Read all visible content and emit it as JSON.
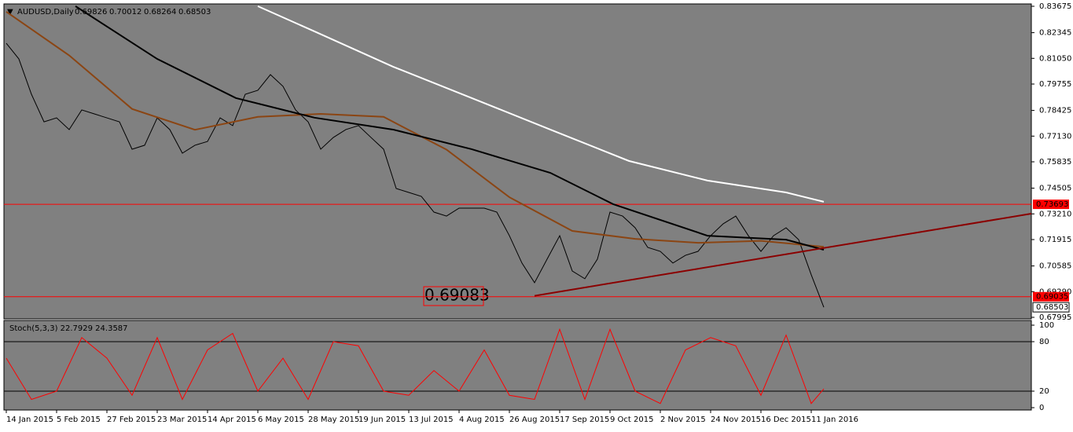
{
  "chart_data": [
    {
      "type": "line",
      "title": "AUDUSD,Daily",
      "ohlc_labels": [
        "0.69826",
        "0.70012",
        "0.68264",
        "0.68503"
      ],
      "ylim": [
        0.67995,
        0.83675
      ],
      "yticks": [
        0.83675,
        0.82345,
        {
          "value": 0.8105,
          "label": "0.81050"
        },
        0.79755,
        0.78425,
        {
          "value": 0.7713,
          "label": "0.77130"
        },
        0.75835,
        0.74505,
        {
          "value": 0.7321,
          "label": "0.73210"
        },
        0.71915,
        0.70585,
        {
          "value": 0.6929,
          "label": "0.69290"
        },
        0.67995
      ],
      "xticks": [
        {
          "value": 0,
          "label": "14 Jan 2015"
        },
        {
          "value": 16,
          "label": "5 Feb 2015"
        },
        {
          "value": 32,
          "label": "27 Feb 2015"
        },
        {
          "value": 48,
          "label": "23 Mar 2015"
        },
        {
          "value": 64,
          "label": "14 Apr 2015"
        },
        {
          "value": 80,
          "label": "6 May 2015"
        },
        {
          "value": 96,
          "label": "28 May 2015"
        },
        {
          "value": 112,
          "label": "19 Jun 2015"
        },
        {
          "value": 128,
          "label": "13 Jul 2015"
        },
        {
          "value": 144,
          "label": "4 Aug 2015"
        },
        {
          "value": 160,
          "label": "26 Aug 2015"
        },
        {
          "value": 176,
          "label": "17 Sep 2015"
        },
        {
          "value": 192,
          "label": "9 Oct 2015"
        },
        {
          "value": 208,
          "label": "2 Nov 2015"
        },
        {
          "value": 224,
          "label": "24 Nov 2015"
        },
        {
          "value": 240,
          "label": "16 Dec 2015"
        },
        {
          "value": 256,
          "label": "11 Jan 2016"
        }
      ],
      "series": [
        {
          "color": "#000000",
          "x": [
            0,
            4,
            8,
            12,
            16,
            20,
            24,
            28,
            32,
            36,
            40,
            44,
            48,
            52,
            56,
            60,
            64,
            68,
            72,
            76,
            80,
            84,
            88,
            92,
            96,
            100,
            104,
            108,
            112,
            116,
            120,
            124,
            128,
            132,
            136,
            140,
            144,
            148,
            152,
            156,
            160,
            164,
            168,
            172,
            176,
            180,
            184,
            188,
            192,
            196,
            200,
            204,
            208,
            212,
            216,
            220,
            224,
            228,
            232,
            236,
            240,
            244,
            248,
            252,
            256,
            260
          ],
          "values": [
            0.8181,
            0.8102,
            0.7924,
            0.7785,
            0.7805,
            0.7746,
            0.7845,
            0.7825,
            0.7805,
            0.7785,
            0.7647,
            0.7667,
            0.7805,
            0.7746,
            0.7627,
            0.7667,
            0.7686,
            0.7805,
            0.7766,
            0.7924,
            0.7944,
            0.8023,
            0.7964,
            0.7845,
            0.7785,
            0.7647,
            0.7706,
            0.7746,
            0.7766,
            0.7706,
            0.7647,
            0.7449,
            0.7429,
            0.7409,
            0.733,
            0.731,
            0.735,
            0.735,
            0.735,
            0.733,
            0.7211,
            0.7073,
            0.6974,
            0.7093,
            0.7211,
            0.7033,
            0.6994,
            0.7093,
            0.733,
            0.731,
            0.7251,
            0.7152,
            0.7132,
            0.7073,
            0.7112,
            0.7132,
            0.7211,
            0.7271,
            0.731,
            0.7211,
            0.7132,
            0.7211,
            0.7251,
            0.7191,
            0.7014,
            0.68503
          ]
        },
        {
          "color": "#8b4513",
          "x": [
            0,
            20,
            40,
            60,
            80,
            100,
            120,
            140,
            160,
            180,
            200,
            220,
            240,
            260
          ],
          "values": [
            0.834,
            0.812,
            0.785,
            0.7745,
            0.781,
            0.7825,
            0.781,
            0.7645,
            0.7405,
            0.7235,
            0.7195,
            0.7175,
            0.7185,
            0.7155
          ]
        },
        {
          "color": "#000000",
          "x": [
            22,
            48,
            73,
            98,
            123,
            148,
            173,
            193,
            223,
            248,
            260
          ],
          "values": [
            0.8368,
            0.8102,
            0.7905,
            0.7806,
            0.7746,
            0.7647,
            0.7528,
            0.737,
            0.7211,
            0.7191,
            0.714
          ]
        },
        {
          "color": "#ffffff",
          "x": [
            80,
            98,
            123,
            148,
            173,
            198,
            223,
            248,
            260
          ],
          "values": [
            0.8368,
            0.8241,
            0.8063,
            0.7905,
            0.7746,
            0.7588,
            0.7489,
            0.7429,
            0.7382
          ]
        }
      ],
      "levels": [
        {
          "value": 0.73693,
          "label": "0.73693"
        },
        {
          "value": 0.69035,
          "label": "0.69035"
        }
      ],
      "current_label": "0.68503",
      "annotation": "0.69083",
      "trendline": {
        "x": [
          168,
          326
        ],
        "values": [
          0.6908,
          0.7322
        ]
      }
    },
    {
      "type": "line",
      "title": "Stoch(5,3,3) 22.7929 24.3587",
      "ylim": [
        0,
        100
      ],
      "yticks": [
        100,
        80,
        20,
        0
      ],
      "levels": [
        80,
        20
      ],
      "series": [
        {
          "color": "#ff0000",
          "x": [
            0,
            8,
            16,
            24,
            32,
            40,
            48,
            56,
            64,
            72,
            80,
            88,
            96,
            104,
            112,
            120,
            128,
            136,
            144,
            152,
            160,
            168,
            176,
            184,
            192,
            200,
            208,
            216,
            224,
            232,
            240,
            248,
            256,
            260
          ],
          "values": [
            60,
            10,
            20,
            85,
            60,
            15,
            85,
            10,
            70,
            90,
            20,
            60,
            10,
            80,
            75,
            20,
            15,
            45,
            20,
            70,
            15,
            10,
            95,
            10,
            95,
            20,
            5,
            70,
            85,
            75,
            15,
            88,
            5,
            22.7929
          ]
        }
      ]
    }
  ]
}
